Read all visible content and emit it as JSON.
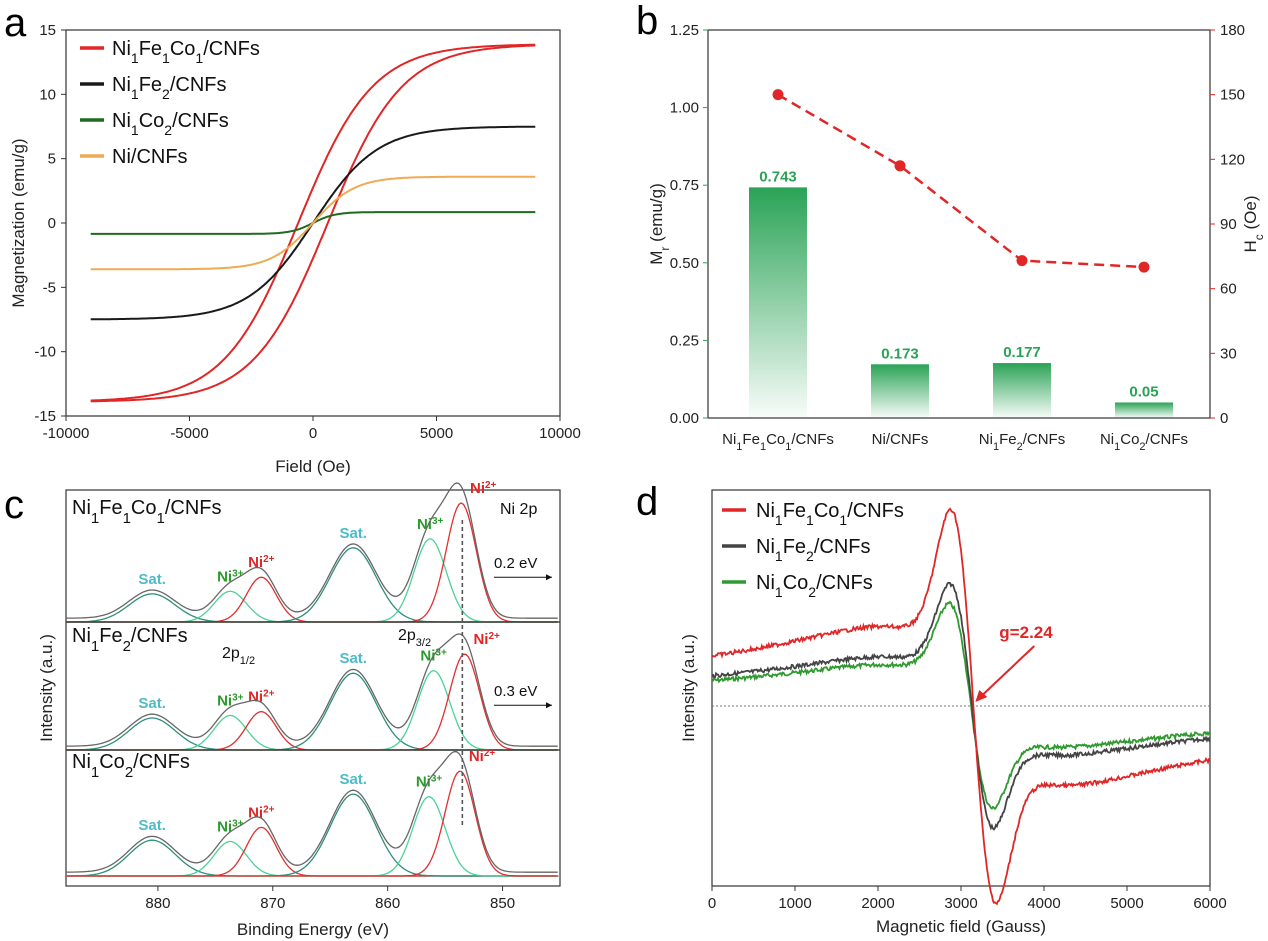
{
  "panels": {
    "a": "a",
    "b": "b",
    "c": "c",
    "d": "d"
  },
  "colors": {
    "red": "#e02626",
    "black": "#1a1a1a",
    "darkgreen": "#1f6b1f",
    "orange": "#f0aa55",
    "green": "#2aa356",
    "teal": "#4dbcc8",
    "fit_ni2": "#e03030",
    "fit_ni3": "#4dd19a",
    "fit_sat": "#2f8f7a",
    "env": "#666666"
  },
  "chart_data": [
    {
      "panel": "a",
      "type": "line",
      "xlabel": "Field (Oe)",
      "ylabel": "Magnetization (emu/g)",
      "xlim": [
        -10000,
        10000
      ],
      "ylim": [
        -15,
        15
      ],
      "xticks": [
        -10000,
        -5000,
        0,
        5000,
        10000
      ],
      "yticks": [
        15,
        10,
        5,
        0,
        -5,
        -10,
        -15
      ],
      "legend_position": "top-left",
      "series": [
        {
          "name": "Ni1Fe1Co1/CNFs",
          "sub": "Ni<tspan baseline-shift='sub' font-size='14'>1</tspan>Fe<tspan baseline-shift='sub' font-size='14'>1</tspan>Co<tspan baseline-shift='sub' font-size='14'>1</tspan>/CNFs",
          "color": "#e02626",
          "Ms": 13.9,
          "H0": 3000,
          "Hc": 150,
          "hysteresis": true
        },
        {
          "name": "Ni1Fe2/CNFs",
          "sub": "Ni<tspan baseline-shift='sub' font-size='14'>1</tspan>Fe<tspan baseline-shift='sub' font-size='14'>2</tspan>/CNFs",
          "color": "#1a1a1a",
          "Ms": 7.5,
          "H0": 2600,
          "Hc": 0,
          "hysteresis": false
        },
        {
          "name": "Ni1Co2/CNFs",
          "sub": "Ni<tspan baseline-shift='sub' font-size='14'>1</tspan>Co<tspan baseline-shift='sub' font-size='14'>2</tspan>/CNFs",
          "color": "#1f6b1f",
          "Ms": 0.85,
          "H0": 900,
          "Hc": 0,
          "hysteresis": false
        },
        {
          "name": "Ni/CNFs",
          "sub": "Ni/CNFs",
          "color": "#f0aa55",
          "Ms": 3.6,
          "H0": 1700,
          "Hc": 0,
          "hysteresis": false
        }
      ]
    },
    {
      "panel": "b",
      "type": "bar",
      "categories": [
        "Ni1Fe1Co1/CNFs",
        "Ni/CNFs",
        "Ni1Fe2/CNFs",
        "Ni1Co2/CNFs"
      ],
      "category_labels": [
        "Ni<tspan baseline-shift='sub' font-size='11'>1</tspan>Fe<tspan baseline-shift='sub' font-size='11'>1</tspan>Co<tspan baseline-shift='sub' font-size='11'>1</tspan>/CNFs",
        "Ni/CNFs",
        "Ni<tspan baseline-shift='sub' font-size='11'>1</tspan>Fe<tspan baseline-shift='sub' font-size='11'>2</tspan>/CNFs",
        "Ni<tspan baseline-shift='sub' font-size='11'>1</tspan>Co<tspan baseline-shift='sub' font-size='11'>2</tspan>/CNFs"
      ],
      "series": [
        {
          "name": "Mr",
          "axis": "left",
          "kind": "bar",
          "values": [
            0.743,
            0.173,
            0.177,
            0.05
          ],
          "labels": [
            "0.743",
            "0.173",
            "0.177",
            "0.05"
          ],
          "color": "#2aa356"
        },
        {
          "name": "Hc",
          "axis": "right",
          "kind": "line-dashed",
          "values": [
            150,
            117,
            73,
            70
          ],
          "color": "#e02626"
        }
      ],
      "ylabel_left": "M<tspan baseline-shift='sub' font-size='12'>r</tspan> (emu/g)",
      "ylabel_right": "H<tspan baseline-shift='sub' font-size='12'>c</tspan> (Oe)",
      "ylim_left": [
        0,
        1.25
      ],
      "ylim_right": [
        0,
        180
      ],
      "yticks_left": [
        "0.00",
        "0.25",
        "0.50",
        "0.75",
        "1.00",
        "1.25"
      ],
      "yticks_right": [
        "0",
        "30",
        "60",
        "90",
        "120",
        "150",
        "180"
      ]
    },
    {
      "panel": "c",
      "type": "line",
      "xlabel": "Binding Energy (eV)",
      "ylabel": "Intensity (a.u.)",
      "xlim": [
        888,
        845
      ],
      "xticks": [
        880,
        870,
        860,
        850
      ],
      "reference_line_eV": 853.5,
      "spectra": [
        {
          "name": "Ni1Fe1Co1/CNFs",
          "title": "Ni<tspan baseline-shift='sub' font-size='15'>1</tspan>Fe<tspan baseline-shift='sub' font-size='15'>1</tspan>Co<tspan baseline-shift='sub' font-size='15'>1</tspan>/CNFs",
          "note": "Ni 2p",
          "shift": "0.2 eV",
          "peaks": [
            {
              "label": "Sat.",
              "center": 880.5,
              "amp": 0.22,
              "width": 2.0,
              "kind": "sat"
            },
            {
              "label": "Ni3+",
              "center": 873.7,
              "amp": 0.24,
              "width": 1.4,
              "kind": "ni3"
            },
            {
              "label": "Ni2+",
              "center": 871.0,
              "amp": 0.35,
              "width": 1.3,
              "kind": "ni2"
            },
            {
              "label": "Sat.",
              "center": 863.0,
              "amp": 0.58,
              "width": 2.0,
              "kind": "sat"
            },
            {
              "label": "Ni3+",
              "center": 856.3,
              "amp": 0.65,
              "width": 1.4,
              "kind": "ni3"
            },
            {
              "label": "Ni2+",
              "center": 853.6,
              "amp": 0.93,
              "width": 1.3,
              "kind": "ni2"
            }
          ]
        },
        {
          "name": "Ni1Fe2/CNFs",
          "title": "Ni<tspan baseline-shift='sub' font-size='15'>1</tspan>Fe<tspan baseline-shift='sub' font-size='15'>2</tspan>/CNFs",
          "note": "",
          "shift": "0.3 eV",
          "p12": "2p<tspan baseline-shift='sub' font-size='11'>1/2</tspan>",
          "p32": "2p<tspan baseline-shift='sub' font-size='11'>3/2</tspan>",
          "peaks": [
            {
              "label": "Sat.",
              "center": 880.5,
              "amp": 0.25,
              "width": 2.0,
              "kind": "sat"
            },
            {
              "label": "Ni3+",
              "center": 873.7,
              "amp": 0.27,
              "width": 1.4,
              "kind": "ni3"
            },
            {
              "label": "Ni2+",
              "center": 871.0,
              "amp": 0.3,
              "width": 1.3,
              "kind": "ni2"
            },
            {
              "label": "Sat.",
              "center": 863.0,
              "amp": 0.6,
              "width": 2.0,
              "kind": "sat"
            },
            {
              "label": "Ni3+",
              "center": 856.0,
              "amp": 0.62,
              "width": 1.4,
              "kind": "ni3"
            },
            {
              "label": "Ni2+",
              "center": 853.3,
              "amp": 0.75,
              "width": 1.3,
              "kind": "ni2"
            }
          ]
        },
        {
          "name": "Ni1Co2/CNFs",
          "title": "Ni<tspan baseline-shift='sub' font-size='15'>1</tspan>Co<tspan baseline-shift='sub' font-size='15'>2</tspan>/CNFs",
          "note": "",
          "shift": "",
          "peaks": [
            {
              "label": "Sat.",
              "center": 880.5,
              "amp": 0.28,
              "width": 2.0,
              "kind": "sat"
            },
            {
              "label": "Ni3+",
              "center": 873.7,
              "amp": 0.27,
              "width": 1.4,
              "kind": "ni3"
            },
            {
              "label": "Ni2+",
              "center": 871.0,
              "amp": 0.38,
              "width": 1.3,
              "kind": "ni2"
            },
            {
              "label": "Sat.",
              "center": 863.0,
              "amp": 0.64,
              "width": 2.0,
              "kind": "sat"
            },
            {
              "label": "Ni3+",
              "center": 856.4,
              "amp": 0.62,
              "width": 1.4,
              "kind": "ni3"
            },
            {
              "label": "Ni2+",
              "center": 853.7,
              "amp": 0.82,
              "width": 1.3,
              "kind": "ni2"
            }
          ]
        }
      ]
    },
    {
      "panel": "d",
      "type": "line",
      "xlabel": "Magnetic field (Gauss)",
      "ylabel": "Intensity (a.u.)",
      "xlim": [
        0,
        6000
      ],
      "xticks": [
        0,
        1000,
        2000,
        3000,
        4000,
        5000,
        6000
      ],
      "legend_position": "top-left",
      "annotation": {
        "text": "g=2.24",
        "x_gauss": 3100
      },
      "series": [
        {
          "name": "Ni1Fe1Co1/CNFs",
          "sub": "Ni<tspan baseline-shift='sub' font-size='14'>1</tspan>Fe<tspan baseline-shift='sub' font-size='14'>1</tspan>Co<tspan baseline-shift='sub' font-size='14'>1</tspan>/CNFs",
          "color": "#e02626",
          "center": 3150,
          "width": 250,
          "amp": 1.0
        },
        {
          "name": "Ni1Fe2/CNFs",
          "sub": "Ni<tspan baseline-shift='sub' font-size='14'>1</tspan>Fe<tspan baseline-shift='sub' font-size='14'>2</tspan>/CNFs",
          "color": "#444444",
          "center": 3130,
          "width": 240,
          "amp": 0.62
        },
        {
          "name": "Ni1Co2/CNFs",
          "sub": "Ni<tspan baseline-shift='sub' font-size='14'>1</tspan>Co<tspan baseline-shift='sub' font-size='14'>2</tspan>/CNFs",
          "color": "#2f9a2f",
          "center": 3120,
          "width": 240,
          "amp": 0.52
        }
      ]
    }
  ]
}
